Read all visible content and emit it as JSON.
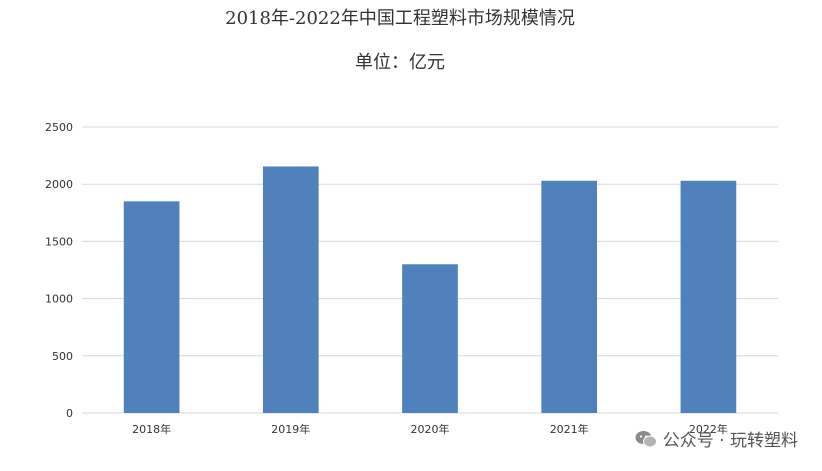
{
  "title": "2018年-2022年中国工程塑料市场规模情况",
  "subtitle": "单位：亿元",
  "watermark": "公众号 · 玩转塑料",
  "chart_data": {
    "type": "bar",
    "title": "2018年-2022年中国工程塑料市场规模情况",
    "subtitle": "单位：亿元",
    "categories": [
      "2018年",
      "2019年",
      "2020年",
      "2021年",
      "2022年"
    ],
    "values": [
      1850,
      2155,
      1300,
      2030,
      2030
    ],
    "yticks": [
      0,
      500,
      1000,
      1500,
      2000,
      2500
    ],
    "ylim": [
      0,
      2500
    ],
    "xlabel": "",
    "ylabel": "",
    "grid": true,
    "bar_color": "#4f81bd",
    "grid_color": "#d9d9d9"
  }
}
